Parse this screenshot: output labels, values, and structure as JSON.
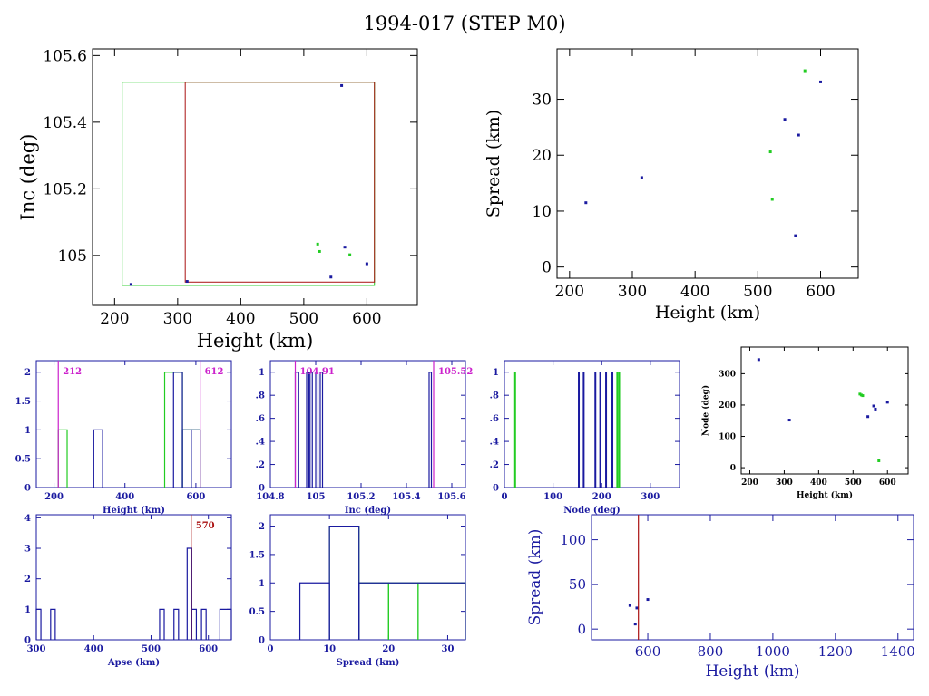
{
  "title": "1994-017 (STEP M0)",
  "colors": {
    "frame": "#000000",
    "blue": "#1a1aa0",
    "green": "#22cc22",
    "magenta": "#cc22cc",
    "red": "#aa1111"
  },
  "chart_data": [
    {
      "id": "p1",
      "type": "scatter",
      "xlabel": "Height (km)",
      "ylabel": "Inc (deg)",
      "xlim": [
        165,
        680
      ],
      "ylim": [
        104.85,
        105.62
      ],
      "xticks": [
        200,
        300,
        400,
        500,
        600
      ],
      "yticks": [
        105,
        105.2,
        105.4,
        105.6
      ],
      "series": [
        {
          "color": "green",
          "points": [
            [
              522,
              105.034
            ],
            [
              525,
              105.012
            ],
            [
              573,
              105.002
            ]
          ]
        },
        {
          "color": "blue",
          "points": [
            [
              226,
              104.913
            ],
            [
              315,
              104.922
            ],
            [
              543,
              104.935
            ],
            [
              560,
              105.51
            ],
            [
              565,
              105.025
            ],
            [
              600,
              104.975
            ]
          ]
        }
      ],
      "rects": [
        {
          "color": "green",
          "x": [
            212,
            612
          ],
          "y": [
            104.91,
            105.52
          ]
        },
        {
          "color": "red",
          "x": [
            312,
            612
          ],
          "y": [
            104.92,
            105.52
          ]
        }
      ]
    },
    {
      "id": "p2",
      "type": "scatter",
      "xlabel": "Height (km)",
      "ylabel": "Spread (km)",
      "xlim": [
        180,
        660
      ],
      "ylim": [
        -2,
        39
      ],
      "xticks": [
        200,
        300,
        400,
        500,
        600
      ],
      "yticks": [
        0,
        10,
        20,
        30
      ],
      "series": [
        {
          "color": "green",
          "points": [
            [
              520,
              20.6
            ],
            [
              523,
              12.1
            ],
            [
              575,
              35.1
            ]
          ]
        },
        {
          "color": "blue",
          "points": [
            [
              226,
              11.5
            ],
            [
              315,
              16.0
            ],
            [
              543,
              26.4
            ],
            [
              560,
              5.6
            ],
            [
              565,
              23.6
            ],
            [
              600,
              33.1
            ]
          ]
        }
      ]
    },
    {
      "id": "p3",
      "type": "bar",
      "xlabel": "Height (km)",
      "xlim": [
        150,
        700
      ],
      "ylim": [
        0,
        2.2
      ],
      "xticks": [
        200,
        400,
        600
      ],
      "yticks": [
        0,
        0.5,
        1,
        1.5,
        2
      ],
      "series": [
        {
          "color": "green",
          "edges": [
            [
              212,
              237
            ],
            [
              512,
              562
            ],
            [
              562,
              587
            ],
            [
              587,
              612
            ]
          ],
          "values": [
            1,
            2,
            1,
            1
          ]
        },
        {
          "color": "blue",
          "edges": [
            [
              312,
              337
            ],
            [
              537,
              562
            ],
            [
              562,
              587
            ],
            [
              587,
              612
            ]
          ],
          "values": [
            1,
            2,
            1,
            1
          ]
        }
      ],
      "vlines": [
        {
          "x": 212,
          "color": "magenta",
          "label": "212",
          "side": "right"
        },
        {
          "x": 612,
          "color": "magenta",
          "label": "612",
          "side": "right"
        }
      ]
    },
    {
      "id": "p4",
      "type": "bar",
      "xlabel": "Inc (deg)",
      "xlim": [
        104.8,
        105.66
      ],
      "ylim": [
        0,
        1.1
      ],
      "xticks": [
        104.8,
        105,
        105.2,
        105.4,
        105.6
      ],
      "ytick_labels": [
        "0",
        ".2",
        ".4",
        ".6",
        ".8",
        "1"
      ],
      "yticks": [
        0,
        0.2,
        0.4,
        0.6,
        0.8,
        1
      ],
      "series": [
        {
          "color": "blue",
          "edges": [
            [
              104.91,
              104.925
            ],
            [
              104.96,
              104.97
            ],
            [
              104.975,
              104.985
            ],
            [
              105.0,
              105.01
            ],
            [
              105.02,
              105.03
            ],
            [
              105.5,
              105.51
            ]
          ],
          "values": [
            1,
            1,
            1,
            1,
            1,
            1
          ]
        }
      ],
      "vlines": [
        {
          "x": 104.91,
          "color": "magenta",
          "label": "104.91",
          "side": "right"
        },
        {
          "x": 105.52,
          "color": "magenta",
          "label": "105.52",
          "side": "right"
        }
      ]
    },
    {
      "id": "p5",
      "type": "bar",
      "xlabel": "Node (deg)",
      "xlim": [
        0,
        360
      ],
      "ylim": [
        0,
        1.1
      ],
      "xticks": [
        0,
        100,
        200,
        300
      ],
      "ytick_labels": [
        "0",
        ".2",
        ".4",
        ".6",
        ".8",
        "1"
      ],
      "yticks": [
        0,
        0.2,
        0.4,
        0.6,
        0.8,
        1
      ],
      "series": [
        {
          "color": "green",
          "spikes": [
            22,
            232,
            236
          ]
        },
        {
          "color": "blue",
          "spikes": [
            153,
            163,
            187,
            197,
            209,
            222
          ]
        }
      ]
    },
    {
      "id": "p6",
      "type": "scatter",
      "xlabel": "Height (km)",
      "ylabel": "Node (deg)",
      "xlim": [
        175,
        660
      ],
      "ylim": [
        -20,
        385
      ],
      "xticks": [
        200,
        300,
        400,
        500,
        600
      ],
      "yticks": [
        0,
        100,
        200,
        300
      ],
      "series": [
        {
          "color": "green",
          "points": [
            [
              520,
              235
            ],
            [
              524,
              232
            ],
            [
              528,
              230
            ],
            [
              575,
              22
            ]
          ]
        },
        {
          "color": "blue",
          "points": [
            [
              226,
              345
            ],
            [
              315,
              152
            ],
            [
              543,
              163
            ],
            [
              560,
              197
            ],
            [
              565,
              187
            ],
            [
              600,
              209
            ]
          ]
        }
      ]
    },
    {
      "id": "p7",
      "type": "bar",
      "xlabel": "Apse (km)",
      "xlim": [
        300,
        640
      ],
      "ylim": [
        0,
        4.1
      ],
      "xticks": [
        300,
        400,
        500,
        600
      ],
      "yticks": [
        0,
        1,
        2,
        3,
        4
      ],
      "series": [
        {
          "color": "blue",
          "edges": [
            [
              300,
              308
            ],
            [
              325,
              333
            ],
            [
              515,
              523
            ],
            [
              540,
              548
            ],
            [
              563,
              571
            ],
            [
              571,
              579
            ],
            [
              588,
              596
            ],
            [
              620,
              640
            ]
          ],
          "values": [
            1,
            1,
            1,
            1,
            3,
            1,
            1,
            1
          ]
        }
      ],
      "vlines": [
        {
          "x": 570,
          "color": "red",
          "label": "570",
          "side": "right"
        }
      ]
    },
    {
      "id": "p8",
      "type": "bar",
      "xlabel": "Spread (km)",
      "xlim": [
        0,
        33
      ],
      "ylim": [
        0,
        2.2
      ],
      "xticks": [
        0,
        10,
        20,
        30
      ],
      "yticks": [
        0,
        0.5,
        1,
        1.5,
        2
      ],
      "series": [
        {
          "color": "green",
          "edges": [
            [
              10,
              15
            ],
            [
              15,
              20
            ],
            [
              20,
              25
            ],
            [
              25,
              33
            ]
          ],
          "values": [
            2,
            1,
            1,
            1
          ]
        },
        {
          "color": "blue",
          "edges": [
            [
              5,
              10
            ],
            [
              10,
              15
            ],
            [
              15,
              33
            ]
          ],
          "values": [
            1,
            2,
            1
          ]
        }
      ]
    },
    {
      "id": "p9",
      "type": "scatter",
      "xlabel": "Height (km)",
      "ylabel": "Spread (km)",
      "xlim": [
        420,
        1450
      ],
      "ylim": [
        -12,
        128
      ],
      "xticks": [
        600,
        800,
        1000,
        1200,
        1400
      ],
      "yticks": [
        0,
        50,
        100
      ],
      "series": [
        {
          "color": "blue",
          "points": [
            [
              543,
              26.4
            ],
            [
              560,
              5.6
            ],
            [
              565,
              23.6
            ],
            [
              600,
              33.1
            ]
          ]
        }
      ],
      "vlines": [
        {
          "x": 570,
          "color": "red"
        }
      ]
    }
  ]
}
